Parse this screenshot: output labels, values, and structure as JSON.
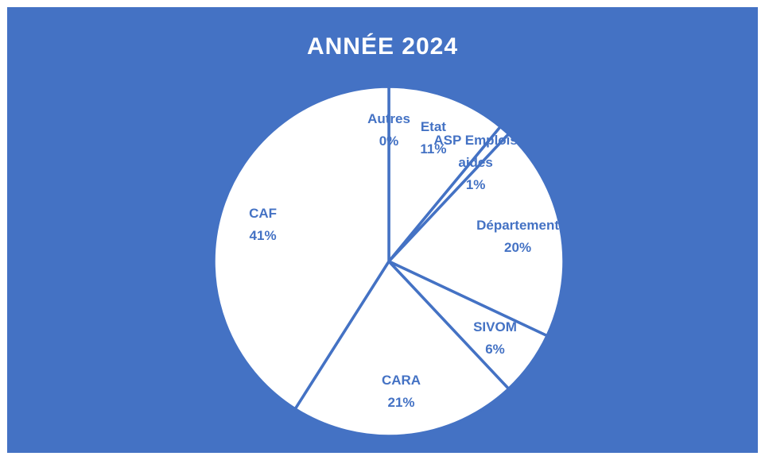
{
  "chart_data": {
    "type": "pie",
    "title": "ANNÉE 2024",
    "categories": [
      "Autres",
      "Etat",
      "ASP Emplois aides",
      "Département",
      "SIVOM",
      "CARA",
      "CAF"
    ],
    "values": [
      0,
      11,
      1,
      20,
      6,
      21,
      41
    ],
    "value_labels": [
      "0%",
      "11%",
      "1%",
      "20%",
      "6%",
      "21%",
      "41%"
    ],
    "color": "#ffffff",
    "background": "#4472c4",
    "label_color": "#4472c4"
  }
}
